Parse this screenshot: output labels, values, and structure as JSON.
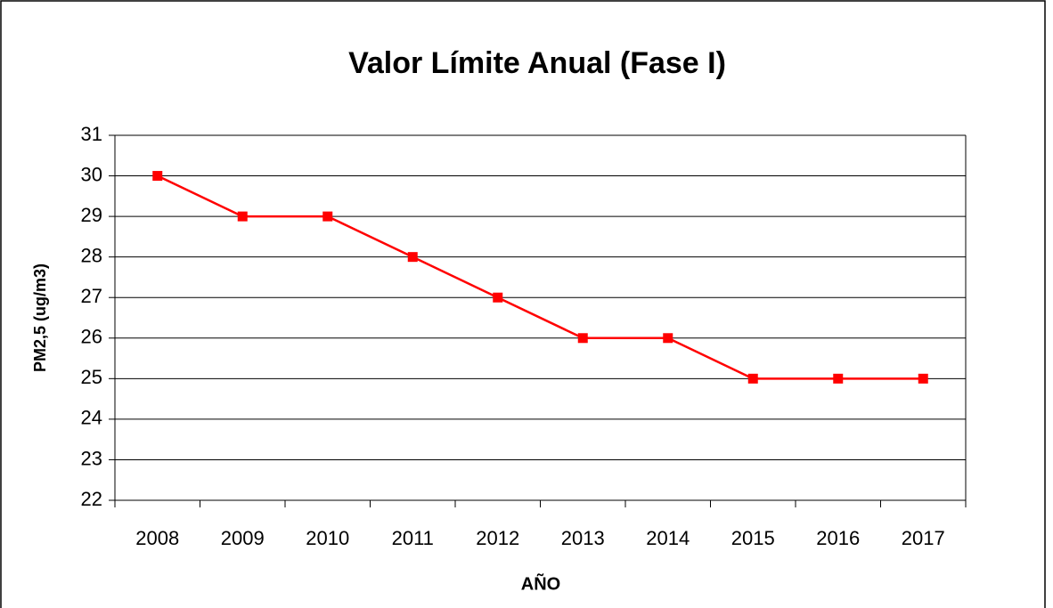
{
  "chart_data": {
    "type": "line",
    "title": "Valor Límite Anual (Fase I)",
    "x_label": "AÑO",
    "y_label": "PM2,5 (ug/m3)",
    "categories": [
      "2008",
      "2009",
      "2010",
      "2011",
      "2012",
      "2013",
      "2014",
      "2015",
      "2016",
      "2017"
    ],
    "values": [
      30,
      29,
      29,
      28,
      27,
      26,
      26,
      25,
      25,
      25
    ],
    "color": "#ff0000",
    "marker": "square",
    "ylim": [
      22,
      31
    ],
    "yticks": [
      22,
      23,
      24,
      25,
      26,
      27,
      28,
      29,
      30,
      31
    ],
    "grid": true
  }
}
